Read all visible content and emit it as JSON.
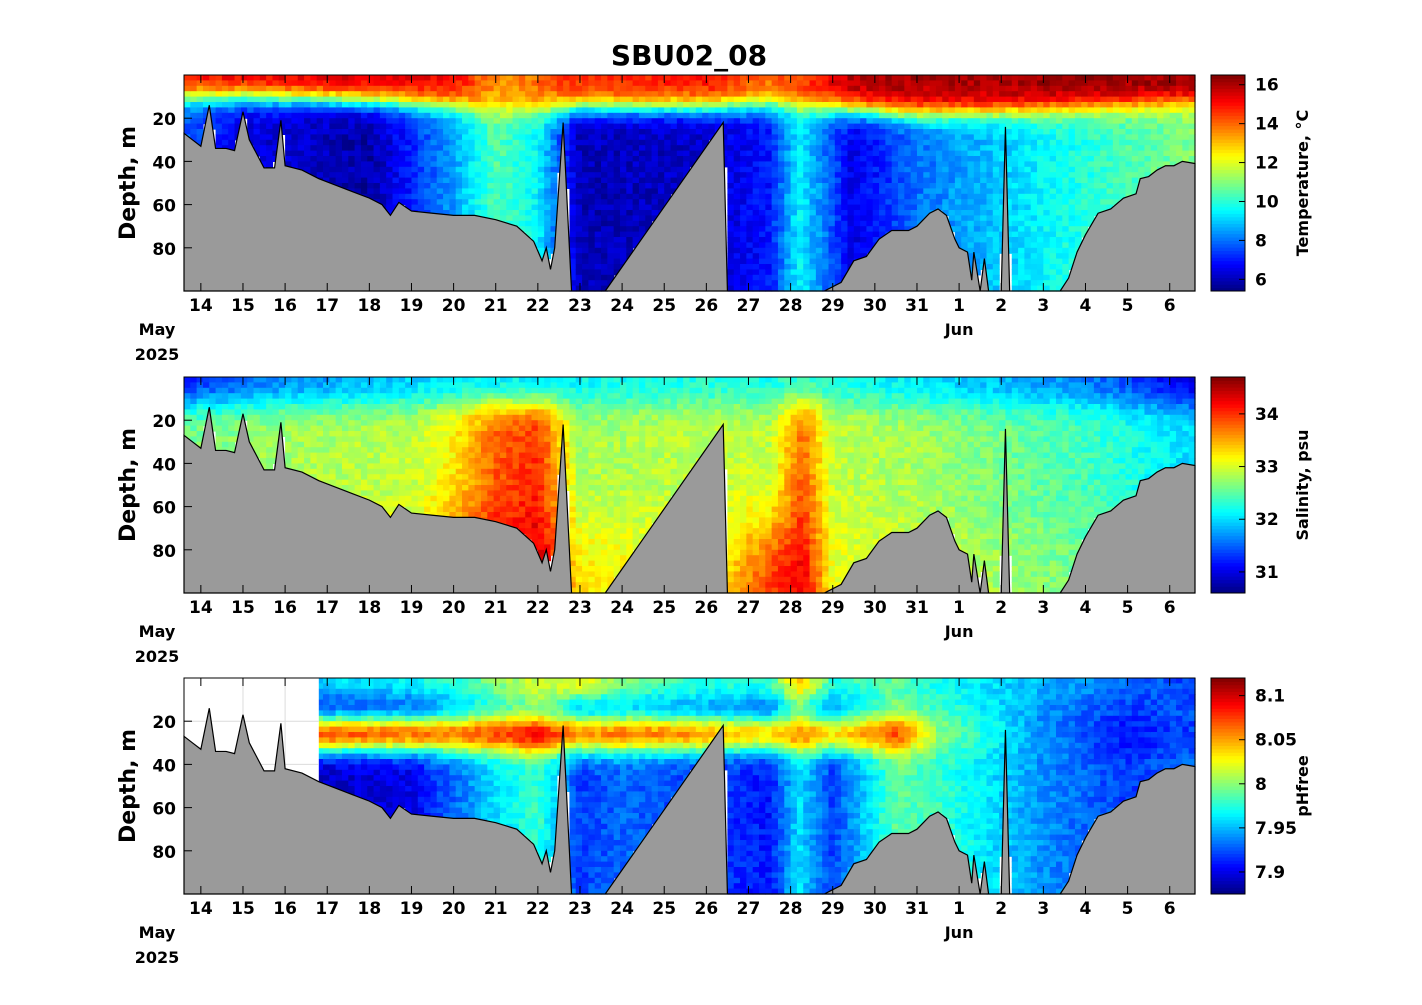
{
  "title": "SBU02_08",
  "colors": {
    "bathymetry": "#9a9a9a",
    "missing": "#ffffff",
    "colormap": "jet"
  },
  "chart_data": [
    {
      "type": "heatmap",
      "ylabel": "Depth, m",
      "colorbar_label": "Temperature, °C",
      "y_ticks": [
        "20",
        "40",
        "60",
        "80"
      ],
      "ylim": [
        100,
        0
      ],
      "clim": [
        5.4,
        16.5
      ],
      "colorbar_ticks": [
        "6",
        "8",
        "10",
        "12",
        "14",
        "16"
      ],
      "x_tick_labels": [
        "14",
        "15",
        "16",
        "17",
        "18",
        "19",
        "20",
        "21",
        "22",
        "23",
        "24",
        "25",
        "26",
        "27",
        "28",
        "29",
        "30",
        "31",
        "1",
        "2",
        "3",
        "4",
        "5",
        "6"
      ],
      "month_labels": [
        "May",
        "Jun"
      ],
      "year_label": "2025",
      "surface_profile": [
        {
          "day": 13.6,
          "surface": 15.2,
          "thermocline": 10,
          "deep": 7.8
        },
        {
          "day": 15,
          "surface": 15.5,
          "thermocline": 10,
          "deep": 6.5
        },
        {
          "day": 18,
          "surface": 15.7,
          "thermocline": 12,
          "deep": 5.8
        },
        {
          "day": 20,
          "surface": 15.2,
          "thermocline": 14,
          "deep": 8.5
        },
        {
          "day": 21,
          "surface": 13.5,
          "thermocline": 16,
          "deep": 10.5
        },
        {
          "day": 22,
          "surface": 14.0,
          "thermocline": 16,
          "deep": 9.5
        },
        {
          "day": 23,
          "surface": 14.8,
          "thermocline": 15,
          "deep": 6.0
        },
        {
          "day": 26,
          "surface": 15.0,
          "thermocline": 15,
          "deep": 6.2
        },
        {
          "day": 27.5,
          "surface": 14.0,
          "thermocline": 14,
          "deep": 7.0
        },
        {
          "day": 28.2,
          "surface": 14.5,
          "thermocline": 14,
          "deep": 9.5
        },
        {
          "day": 29.5,
          "surface": 16.0,
          "thermocline": 16,
          "deep": 6.5
        },
        {
          "day": 31,
          "surface": 16.0,
          "thermocline": 18,
          "deep": 8.0
        },
        {
          "day": 34,
          "surface": 16.2,
          "thermocline": 16,
          "deep": 9.5
        },
        {
          "day": 37.6,
          "surface": 16.4,
          "thermocline": 12,
          "deep": 11.0
        }
      ]
    },
    {
      "type": "heatmap",
      "ylabel": "Depth, m",
      "colorbar_label": "Salinity, psu",
      "y_ticks": [
        "20",
        "40",
        "60",
        "80"
      ],
      "ylim": [
        100,
        0
      ],
      "clim": [
        30.6,
        34.7
      ],
      "colorbar_ticks": [
        "31",
        "32",
        "33",
        "34"
      ],
      "x_tick_labels": [
        "14",
        "15",
        "16",
        "17",
        "18",
        "19",
        "20",
        "21",
        "22",
        "23",
        "24",
        "25",
        "26",
        "27",
        "28",
        "29",
        "30",
        "31",
        "1",
        "2",
        "3",
        "4",
        "5",
        "6"
      ],
      "month_labels": [
        "May",
        "Jun"
      ],
      "year_label": "2025",
      "surface_profile": [
        {
          "day": 13.6,
          "surface": 31.2,
          "mid": 32.6,
          "deep": 32.9
        },
        {
          "day": 16,
          "surface": 31.6,
          "mid": 32.8,
          "deep": 33.0
        },
        {
          "day": 19,
          "surface": 31.9,
          "mid": 32.9,
          "deep": 33.2
        },
        {
          "day": 20,
          "surface": 32.0,
          "mid": 33.2,
          "deep": 33.9
        },
        {
          "day": 21,
          "surface": 32.0,
          "mid": 33.8,
          "deep": 34.3
        },
        {
          "day": 22,
          "surface": 32.0,
          "mid": 34.0,
          "deep": 34.5
        },
        {
          "day": 23,
          "surface": 32.1,
          "mid": 32.8,
          "deep": 33.3
        },
        {
          "day": 26,
          "surface": 32.2,
          "mid": 32.9,
          "deep": 33.0
        },
        {
          "day": 27.5,
          "surface": 32.2,
          "mid": 32.9,
          "deep": 34.0
        },
        {
          "day": 28.3,
          "surface": 32.3,
          "mid": 33.8,
          "deep": 34.3
        },
        {
          "day": 29,
          "surface": 32.2,
          "mid": 32.9,
          "deep": 33.1
        },
        {
          "day": 31,
          "surface": 32.0,
          "mid": 32.8,
          "deep": 33.0
        },
        {
          "day": 35,
          "surface": 31.6,
          "mid": 32.4,
          "deep": 32.6
        },
        {
          "day": 37.6,
          "surface": 30.9,
          "mid": 32.0,
          "deep": 32.2
        }
      ]
    },
    {
      "type": "heatmap",
      "ylabel": "Depth, m",
      "colorbar_label": "pHfree",
      "y_ticks": [
        "20",
        "40",
        "60",
        "80"
      ],
      "ylim": [
        100,
        0
      ],
      "clim": [
        7.875,
        8.12
      ],
      "colorbar_ticks": [
        "7.9",
        "7.95",
        "8",
        "8.05",
        "8.1"
      ],
      "x_tick_labels": [
        "14",
        "15",
        "16",
        "17",
        "18",
        "19",
        "20",
        "21",
        "22",
        "23",
        "24",
        "25",
        "26",
        "27",
        "28",
        "29",
        "30",
        "31",
        "1",
        "2",
        "3",
        "4",
        "5",
        "6"
      ],
      "month_labels": [
        "May",
        "Jun"
      ],
      "year_label": "2025",
      "data_start_day": 16.8,
      "surface_profile": [
        {
          "day": 16.8,
          "surface": 7.96,
          "mid": 8.07,
          "deep": 7.89
        },
        {
          "day": 19,
          "surface": 7.97,
          "mid": 8.06,
          "deep": 7.9
        },
        {
          "day": 20,
          "surface": 7.98,
          "mid": 8.06,
          "deep": 7.93
        },
        {
          "day": 21,
          "surface": 8.0,
          "mid": 8.07,
          "deep": 7.96
        },
        {
          "day": 22,
          "surface": 8.02,
          "mid": 8.09,
          "deep": 7.98
        },
        {
          "day": 23,
          "surface": 8.03,
          "mid": 8.05,
          "deep": 7.92
        },
        {
          "day": 24,
          "surface": 8.0,
          "mid": 8.06,
          "deep": 7.93
        },
        {
          "day": 26,
          "surface": 7.98,
          "mid": 8.05,
          "deep": 7.92
        },
        {
          "day": 27.5,
          "surface": 7.98,
          "mid": 8.03,
          "deep": 7.91
        },
        {
          "day": 28.2,
          "surface": 8.05,
          "mid": 8.06,
          "deep": 7.96
        },
        {
          "day": 29,
          "surface": 7.98,
          "mid": 8.03,
          "deep": 7.92
        },
        {
          "day": 30.5,
          "surface": 7.99,
          "mid": 8.07,
          "deep": 7.99
        },
        {
          "day": 31.5,
          "surface": 7.97,
          "mid": 8.0,
          "deep": 7.98
        },
        {
          "day": 34,
          "surface": 7.95,
          "mid": 7.94,
          "deep": 7.94
        },
        {
          "day": 36,
          "surface": 7.93,
          "mid": 7.91,
          "deep": 7.92
        },
        {
          "day": 37.6,
          "surface": 7.92,
          "mid": 7.92,
          "deep": 7.93
        }
      ]
    }
  ],
  "bathymetry": {
    "xlim_days": [
      13.6,
      37.6
    ],
    "points": [
      [
        13.6,
        27
      ],
      [
        13.8,
        30
      ],
      [
        14.0,
        33
      ],
      [
        14.2,
        14
      ],
      [
        14.35,
        34
      ],
      [
        14.6,
        34
      ],
      [
        14.8,
        35
      ],
      [
        15.0,
        17
      ],
      [
        15.15,
        30
      ],
      [
        15.5,
        43
      ],
      [
        15.75,
        43
      ],
      [
        15.9,
        21
      ],
      [
        16.0,
        42
      ],
      [
        16.4,
        44
      ],
      [
        16.8,
        48
      ],
      [
        17.2,
        51
      ],
      [
        17.6,
        54
      ],
      [
        18.0,
        57
      ],
      [
        18.3,
        60
      ],
      [
        18.5,
        65
      ],
      [
        18.7,
        59
      ],
      [
        19.0,
        63
      ],
      [
        19.5,
        64
      ],
      [
        20.0,
        65
      ],
      [
        20.5,
        65
      ],
      [
        21.0,
        67
      ],
      [
        21.5,
        70
      ],
      [
        21.9,
        77
      ],
      [
        22.1,
        86
      ],
      [
        22.2,
        80
      ],
      [
        22.3,
        90
      ],
      [
        22.4,
        80
      ],
      [
        22.6,
        22
      ],
      [
        22.8,
        100
      ],
      [
        23.2,
        100
      ],
      [
        23.4,
        100
      ],
      [
        23.6,
        100
      ],
      [
        26.4,
        22
      ],
      [
        26.5,
        100
      ],
      [
        28.8,
        100
      ],
      [
        29.2,
        96
      ],
      [
        29.5,
        86
      ],
      [
        29.8,
        84
      ],
      [
        30.1,
        76
      ],
      [
        30.4,
        72
      ],
      [
        30.8,
        72
      ],
      [
        31.0,
        70
      ],
      [
        31.3,
        64
      ],
      [
        31.5,
        62
      ],
      [
        31.7,
        65
      ],
      [
        31.9,
        76
      ],
      [
        32.0,
        80
      ],
      [
        32.2,
        82
      ],
      [
        32.3,
        95
      ],
      [
        32.35,
        82
      ],
      [
        32.5,
        100
      ],
      [
        32.6,
        85
      ],
      [
        32.7,
        100
      ],
      [
        33.0,
        100
      ],
      [
        33.1,
        24
      ],
      [
        33.2,
        100
      ],
      [
        34.4,
        100
      ],
      [
        34.6,
        94
      ],
      [
        34.8,
        82
      ],
      [
        35.0,
        74
      ],
      [
        35.3,
        64
      ],
      [
        35.6,
        62
      ],
      [
        35.9,
        57
      ],
      [
        36.2,
        55
      ],
      [
        36.3,
        48
      ],
      [
        36.5,
        47
      ],
      [
        36.7,
        44
      ],
      [
        36.9,
        42
      ],
      [
        37.1,
        42
      ],
      [
        37.3,
        40
      ],
      [
        37.6,
        41
      ]
    ]
  }
}
